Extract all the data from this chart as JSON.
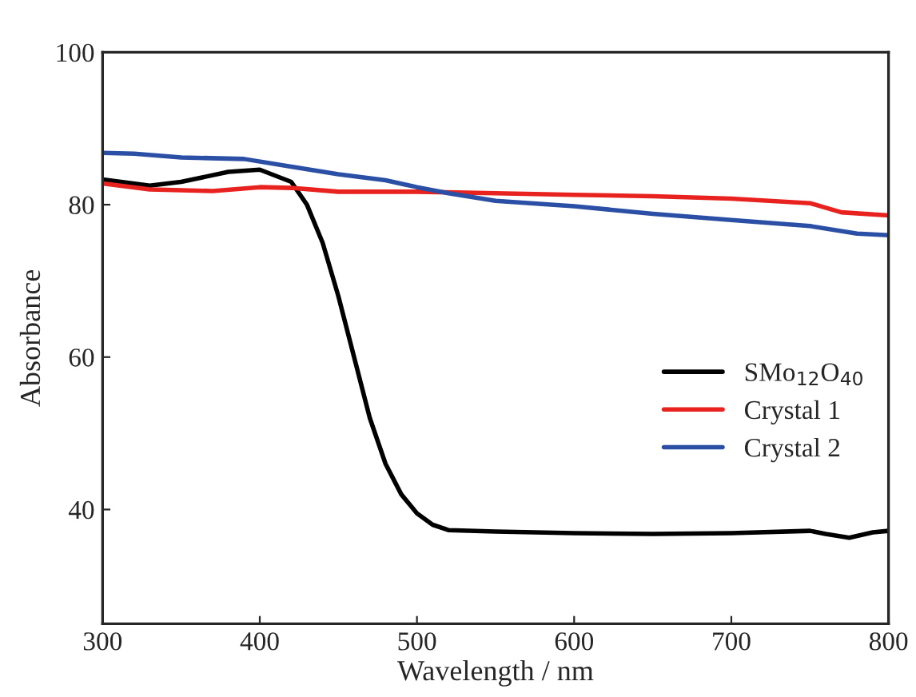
{
  "chart_data": {
    "type": "line",
    "xlabel": "Wavelength / nm",
    "ylabel": "Absorbance",
    "xlim": [
      300,
      800
    ],
    "xticks": [
      300,
      400,
      500,
      600,
      700,
      800
    ],
    "ylim": [
      25,
      100
    ],
    "yticks": [
      40,
      60,
      80,
      100
    ],
    "grid": false,
    "legend": "right",
    "marker": "none",
    "line_style": "solid",
    "series": [
      {
        "name": "SMo$_{12}$O$_{40}$",
        "color": "#000000",
        "x": [
          300,
          330,
          350,
          380,
          400,
          420,
          430,
          440,
          450,
          460,
          470,
          480,
          490,
          500,
          510,
          520,
          550,
          600,
          650,
          700,
          750,
          760,
          775,
          790,
          800
        ],
        "values": [
          83.3,
          82.5,
          83,
          84.3,
          84.6,
          83,
          80,
          75,
          68,
          60,
          52,
          46,
          42,
          39.5,
          38,
          37.3,
          37.1,
          36.9,
          36.8,
          36.9,
          37.2,
          36.8,
          36.3,
          37,
          37.2
        ]
      },
      {
        "name": "Crystal 1",
        "color": "#e8221f",
        "x": [
          300,
          330,
          370,
          400,
          420,
          450,
          500,
          550,
          600,
          650,
          700,
          750,
          770,
          800
        ],
        "values": [
          82.8,
          82,
          81.8,
          82.3,
          82.2,
          81.7,
          81.7,
          81.5,
          81.3,
          81.1,
          80.8,
          80.2,
          79,
          78.6
        ]
      },
      {
        "name": "Crystal 2",
        "color": "#2a4fa5",
        "x": [
          300,
          320,
          350,
          390,
          420,
          450,
          480,
          500,
          520,
          550,
          600,
          650,
          700,
          750,
          780,
          800
        ],
        "values": [
          86.8,
          86.7,
          86.2,
          86,
          85,
          84,
          83.2,
          82.3,
          81.5,
          80.5,
          79.8,
          78.8,
          78,
          77.2,
          76.2,
          76
        ]
      }
    ]
  }
}
